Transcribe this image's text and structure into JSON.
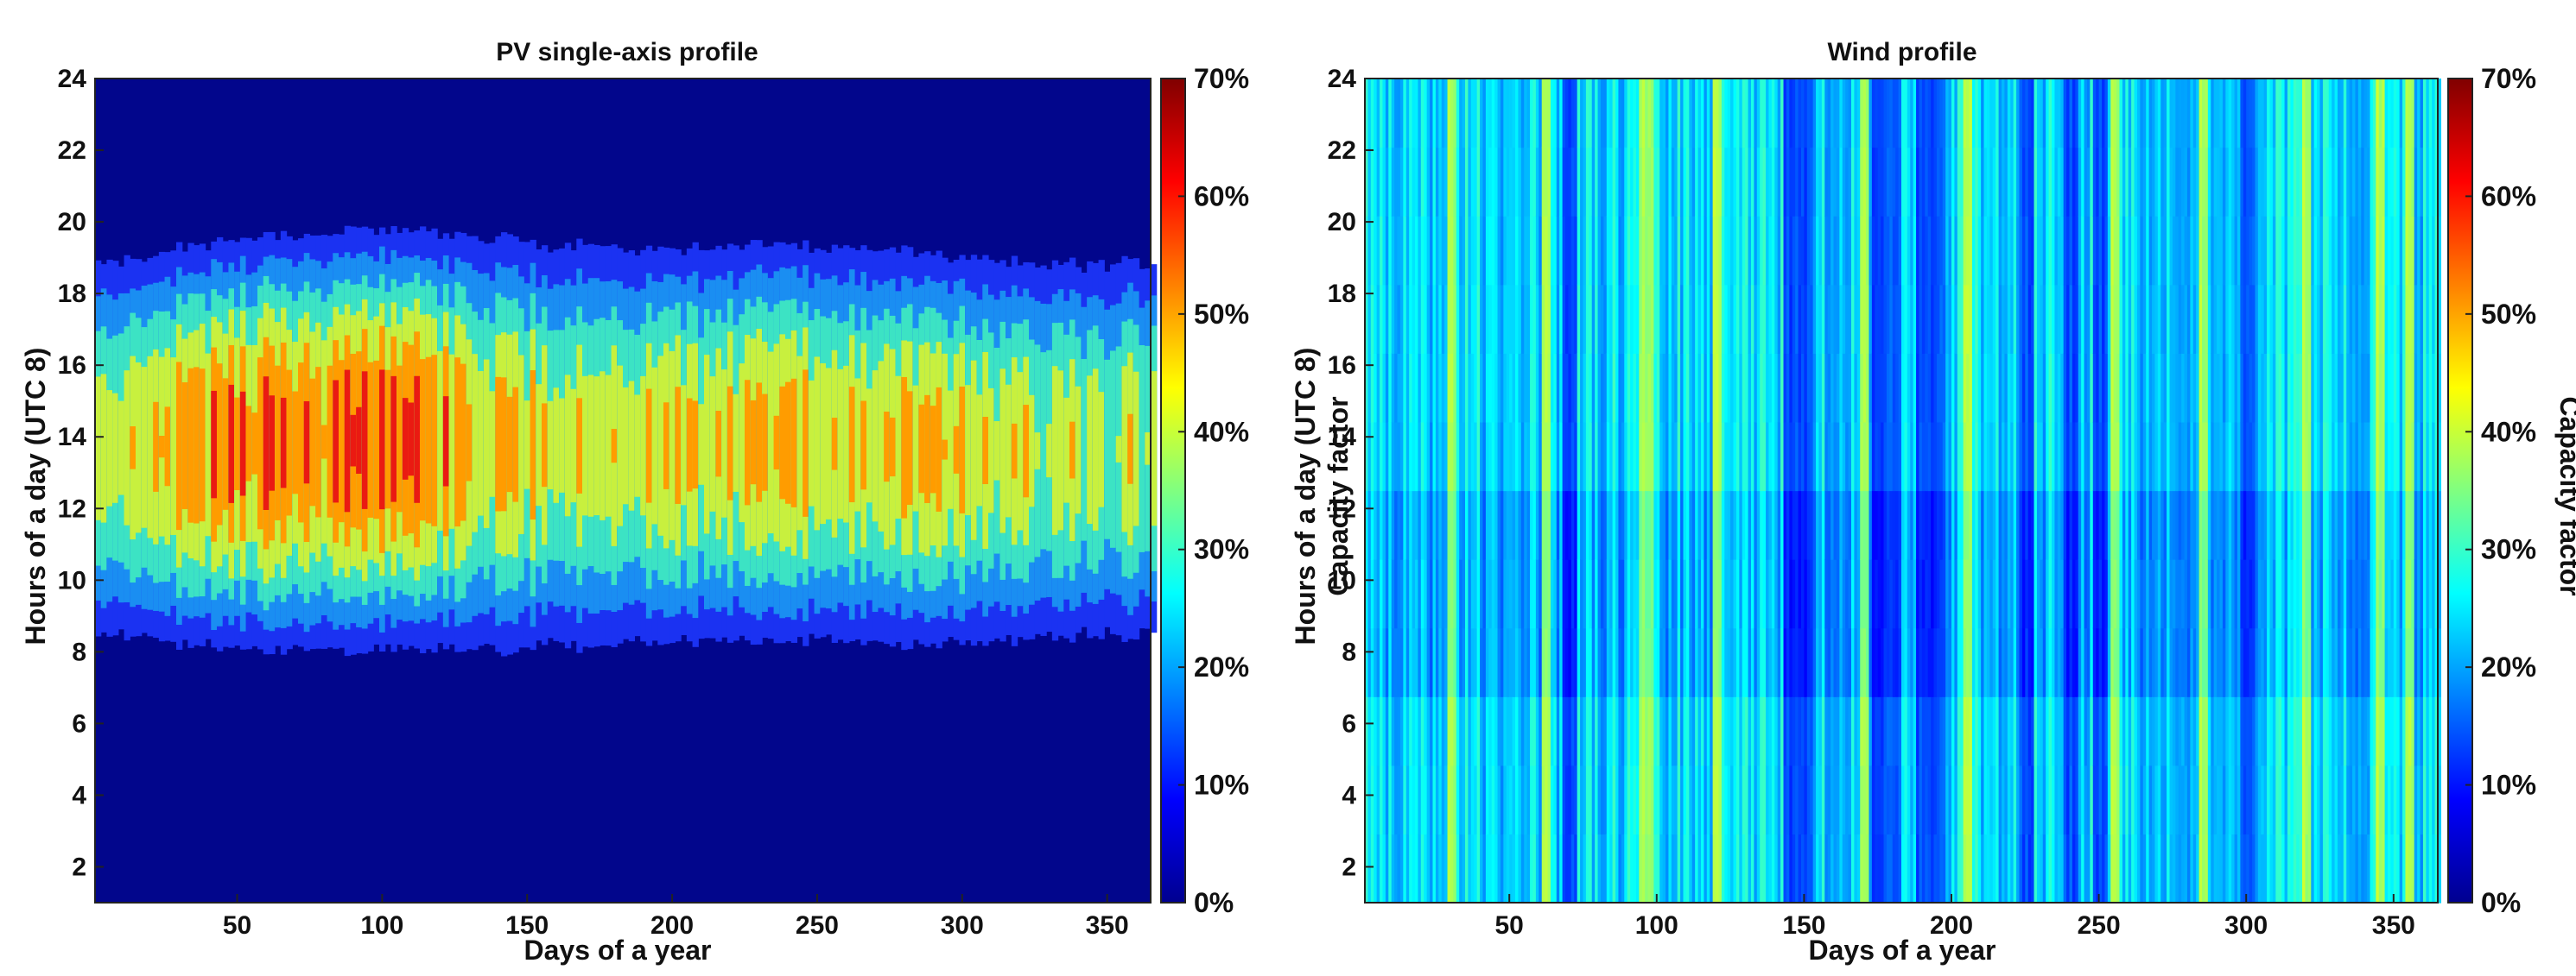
{
  "chart_data": [
    {
      "type": "heatmap",
      "title": "PV single-axis profile",
      "xlabel": "Days of a year",
      "ylabel": "Hours of a day (UTC 8)",
      "colorbar_label": "",
      "xlim": [
        1,
        365
      ],
      "ylim": [
        1,
        24
      ],
      "x_ticks": [
        50,
        100,
        150,
        200,
        250,
        300,
        350
      ],
      "y_ticks": [
        2,
        4,
        6,
        8,
        10,
        12,
        14,
        16,
        18,
        20,
        22,
        24
      ],
      "colorbar": {
        "min": 0,
        "max": 70,
        "unit": "%",
        "ticks": [
          "0%",
          "10%",
          "20%",
          "30%",
          "40%",
          "50%",
          "60%",
          "70%"
        ]
      },
      "colormap": "jet",
      "levels": [
        0,
        10,
        20,
        30,
        40,
        50,
        60,
        70
      ],
      "daily_profile": {
        "sunrise_hour_by_month": [
          7.2,
          7.0,
          6.9,
          7.0,
          6.8,
          6.9,
          7.0,
          7.1,
          7.1,
          7.0,
          7.1,
          7.2
        ],
        "sunset_hour_by_month": [
          19.4,
          19.8,
          20.0,
          20.1,
          20.0,
          19.8,
          19.7,
          19.8,
          19.7,
          19.5,
          19.3,
          19.3
        ],
        "peak_window_hours": [
          10.5,
          16.5
        ]
      },
      "peak_capacity_factor_by_month_pct": [
        50,
        62,
        60,
        62,
        52,
        50,
        48,
        50,
        52,
        50,
        48,
        45
      ]
    },
    {
      "type": "heatmap",
      "title": "Wind profile",
      "xlabel": "Days of a year",
      "ylabel": "Hours of a day (UTC 8)",
      "colorbar_label": "Capacity factor",
      "xlim": [
        1,
        365
      ],
      "ylim": [
        1,
        24
      ],
      "x_ticks": [
        50,
        100,
        150,
        200,
        250,
        300,
        350
      ],
      "y_ticks": [
        2,
        4,
        6,
        8,
        10,
        12,
        14,
        16,
        18,
        20,
        22,
        24
      ],
      "colorbar": {
        "min": 0,
        "max": 70,
        "unit": "%",
        "ticks": [
          "0%",
          "10%",
          "20%",
          "30%",
          "40%",
          "50%",
          "60%",
          "70%"
        ]
      },
      "colormap": "jet",
      "typical_capacity_factor_range_pct": [
        12,
        40
      ],
      "high_wind_days": [
        30,
        62,
        95,
        97,
        120,
        170,
        205,
        255,
        285,
        320,
        345,
        355
      ],
      "low_wind_days": [
        70,
        145,
        150,
        175,
        180,
        190,
        195,
        225,
        240,
        250,
        300
      ]
    }
  ],
  "colors": {
    "jet": [
      "#00008f",
      "#0000ff",
      "#0080ff",
      "#00ffff",
      "#80ff80",
      "#ffff00",
      "#ff8000",
      "#ff0000",
      "#800000"
    ],
    "pv_bands": [
      "#02068c",
      "#1b32f2",
      "#1a8ef2",
      "#3ce3c4",
      "#c8f03e",
      "#ff9c00",
      "#ea1a12"
    ]
  }
}
